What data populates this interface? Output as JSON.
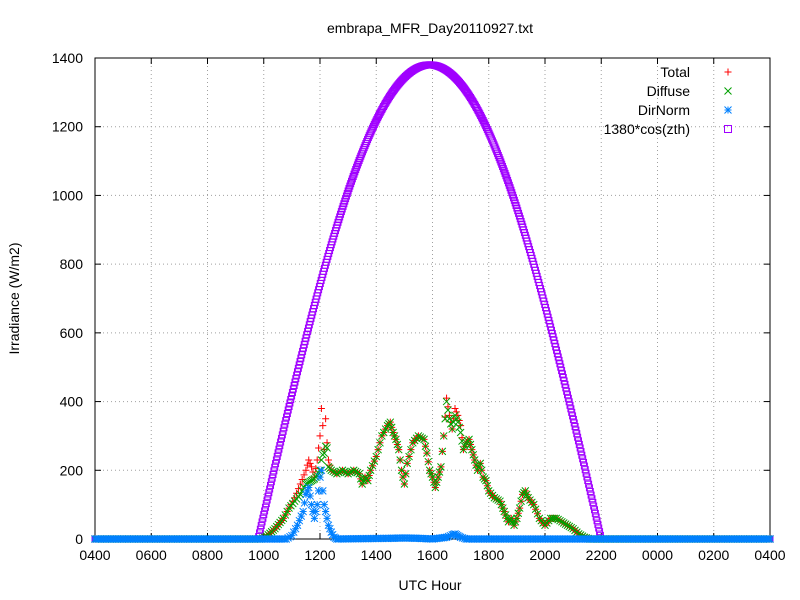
{
  "chart_data": {
    "type": "scatter",
    "title": "embrapa_MFR_Day20110927.txt",
    "xlabel": "UTC Hour",
    "ylabel": "Irradiance (W/m2)",
    "x_unit": "hour (UTC), axis spans 04:00 to 04:00 next day",
    "xlim": [
      4,
      28
    ],
    "ylim": [
      0,
      1400
    ],
    "xticks": [
      4,
      6,
      8,
      10,
      12,
      14,
      16,
      18,
      20,
      22,
      24,
      26,
      28
    ],
    "xtick_labels": [
      "0400",
      "0600",
      "0800",
      "1000",
      "1200",
      "1400",
      "1600",
      "1800",
      "2000",
      "2200",
      "0000",
      "0200",
      "0400"
    ],
    "yticks": [
      0,
      200,
      400,
      600,
      800,
      1000,
      1200,
      1400
    ],
    "ytick_labels": [
      "0",
      "200",
      "400",
      "600",
      "800",
      "1000",
      "1200",
      "1400"
    ],
    "grid": true,
    "legend_position": "top-right",
    "series": [
      {
        "name": "Total",
        "color": "#ff0000",
        "marker": "plus",
        "points": [
          [
            4,
            0
          ],
          [
            9.9,
            0
          ],
          [
            10.1,
            8
          ],
          [
            10.4,
            30
          ],
          [
            10.7,
            60
          ],
          [
            10.9,
            90
          ],
          [
            11.1,
            120
          ],
          [
            11.3,
            160
          ],
          [
            11.5,
            200
          ],
          [
            11.6,
            230
          ],
          [
            11.7,
            210
          ],
          [
            11.8,
            180
          ],
          [
            11.9,
            230
          ],
          [
            12.0,
            300
          ],
          [
            12.05,
            380
          ],
          [
            12.1,
            330
          ],
          [
            12.15,
            260
          ],
          [
            12.2,
            350
          ],
          [
            12.25,
            280
          ],
          [
            12.3,
            230
          ],
          [
            12.4,
            200
          ],
          [
            12.6,
            190
          ],
          [
            12.8,
            200
          ],
          [
            13.0,
            190
          ],
          [
            13.2,
            200
          ],
          [
            13.4,
            190
          ],
          [
            13.5,
            160
          ],
          [
            13.6,
            180
          ],
          [
            13.7,
            170
          ],
          [
            13.8,
            200
          ],
          [
            14.0,
            240
          ],
          [
            14.2,
            300
          ],
          [
            14.4,
            330
          ],
          [
            14.5,
            340
          ],
          [
            14.6,
            310
          ],
          [
            14.7,
            290
          ],
          [
            14.8,
            260
          ],
          [
            14.9,
            200
          ],
          [
            15.0,
            160
          ],
          [
            15.1,
            220
          ],
          [
            15.3,
            280
          ],
          [
            15.5,
            300
          ],
          [
            15.7,
            290
          ],
          [
            15.8,
            250
          ],
          [
            15.9,
            200
          ],
          [
            16.0,
            180
          ],
          [
            16.1,
            150
          ],
          [
            16.2,
            180
          ],
          [
            16.3,
            210
          ],
          [
            16.4,
            300
          ],
          [
            16.5,
            410
          ],
          [
            16.6,
            360
          ],
          [
            16.7,
            320
          ],
          [
            16.8,
            380
          ],
          [
            16.9,
            360
          ],
          [
            17.0,
            330
          ],
          [
            17.1,
            260
          ],
          [
            17.2,
            280
          ],
          [
            17.3,
            290
          ],
          [
            17.4,
            260
          ],
          [
            17.5,
            230
          ],
          [
            17.6,
            200
          ],
          [
            17.7,
            220
          ],
          [
            17.8,
            180
          ],
          [
            17.9,
            170
          ],
          [
            18.0,
            140
          ],
          [
            18.2,
            120
          ],
          [
            18.4,
            110
          ],
          [
            18.5,
            90
          ],
          [
            18.6,
            70
          ],
          [
            18.7,
            50
          ],
          [
            18.8,
            60
          ],
          [
            18.9,
            40
          ],
          [
            19.0,
            60
          ],
          [
            19.1,
            90
          ],
          [
            19.2,
            130
          ],
          [
            19.3,
            140
          ],
          [
            19.4,
            120
          ],
          [
            19.6,
            100
          ],
          [
            19.8,
            60
          ],
          [
            20.0,
            40
          ],
          [
            20.2,
            60
          ],
          [
            20.4,
            60
          ],
          [
            20.6,
            50
          ],
          [
            20.8,
            40
          ],
          [
            21.0,
            30
          ],
          [
            21.2,
            15
          ],
          [
            21.4,
            5
          ],
          [
            21.6,
            0
          ],
          [
            28,
            0
          ]
        ]
      },
      {
        "name": "Diffuse",
        "color": "#00a000",
        "marker": "cross",
        "points": [
          [
            4,
            0
          ],
          [
            9.9,
            0
          ],
          [
            10.1,
            8
          ],
          [
            10.4,
            30
          ],
          [
            10.7,
            60
          ],
          [
            10.9,
            90
          ],
          [
            11.1,
            110
          ],
          [
            11.3,
            130
          ],
          [
            11.5,
            160
          ],
          [
            11.6,
            165
          ],
          [
            11.7,
            170
          ],
          [
            11.8,
            175
          ],
          [
            11.9,
            185
          ],
          [
            12.0,
            200
          ],
          [
            12.05,
            230
          ],
          [
            12.1,
            245
          ],
          [
            12.15,
            250
          ],
          [
            12.2,
            270
          ],
          [
            12.25,
            265
          ],
          [
            12.3,
            210
          ],
          [
            12.4,
            200
          ],
          [
            12.6,
            190
          ],
          [
            12.8,
            200
          ],
          [
            13.0,
            190
          ],
          [
            13.2,
            200
          ],
          [
            13.4,
            190
          ],
          [
            13.5,
            160
          ],
          [
            13.6,
            180
          ],
          [
            13.7,
            170
          ],
          [
            13.8,
            200
          ],
          [
            14.0,
            240
          ],
          [
            14.2,
            300
          ],
          [
            14.4,
            330
          ],
          [
            14.5,
            340
          ],
          [
            14.6,
            310
          ],
          [
            14.7,
            290
          ],
          [
            14.8,
            260
          ],
          [
            14.9,
            200
          ],
          [
            15.0,
            160
          ],
          [
            15.1,
            220
          ],
          [
            15.3,
            280
          ],
          [
            15.5,
            300
          ],
          [
            15.7,
            290
          ],
          [
            15.8,
            250
          ],
          [
            15.9,
            200
          ],
          [
            16.0,
            180
          ],
          [
            16.1,
            150
          ],
          [
            16.2,
            180
          ],
          [
            16.3,
            210
          ],
          [
            16.4,
            300
          ],
          [
            16.5,
            400
          ],
          [
            16.6,
            350
          ],
          [
            16.7,
            320
          ],
          [
            16.8,
            360
          ],
          [
            16.9,
            340
          ],
          [
            17.0,
            310
          ],
          [
            17.1,
            260
          ],
          [
            17.2,
            280
          ],
          [
            17.3,
            290
          ],
          [
            17.4,
            260
          ],
          [
            17.5,
            230
          ],
          [
            17.6,
            200
          ],
          [
            17.7,
            220
          ],
          [
            17.8,
            180
          ],
          [
            17.9,
            170
          ],
          [
            18.0,
            140
          ],
          [
            18.2,
            120
          ],
          [
            18.4,
            110
          ],
          [
            18.5,
            90
          ],
          [
            18.6,
            70
          ],
          [
            18.7,
            50
          ],
          [
            18.8,
            60
          ],
          [
            18.9,
            40
          ],
          [
            19.0,
            60
          ],
          [
            19.1,
            90
          ],
          [
            19.2,
            130
          ],
          [
            19.3,
            140
          ],
          [
            19.4,
            120
          ],
          [
            19.6,
            100
          ],
          [
            19.8,
            60
          ],
          [
            20.0,
            40
          ],
          [
            20.2,
            60
          ],
          [
            20.4,
            60
          ],
          [
            20.6,
            50
          ],
          [
            20.8,
            40
          ],
          [
            21.0,
            30
          ],
          [
            21.2,
            15
          ],
          [
            21.4,
            5
          ],
          [
            21.6,
            0
          ],
          [
            28,
            0
          ]
        ]
      },
      {
        "name": "DirNorm",
        "color": "#0080ff",
        "marker": "star",
        "points": [
          [
            4,
            0
          ],
          [
            10.8,
            0
          ],
          [
            11.0,
            10
          ],
          [
            11.2,
            40
          ],
          [
            11.4,
            80
          ],
          [
            11.5,
            130
          ],
          [
            11.6,
            150
          ],
          [
            11.7,
            100
          ],
          [
            11.8,
            60
          ],
          [
            11.9,
            100
          ],
          [
            12.0,
            180
          ],
          [
            12.05,
            200
          ],
          [
            12.1,
            140
          ],
          [
            12.15,
            100
          ],
          [
            12.2,
            80
          ],
          [
            12.3,
            40
          ],
          [
            12.4,
            20
          ],
          [
            12.5,
            5
          ],
          [
            12.6,
            0
          ],
          [
            14.5,
            2
          ],
          [
            15.0,
            3
          ],
          [
            15.5,
            2
          ],
          [
            16.0,
            0
          ],
          [
            16.5,
            5
          ],
          [
            16.7,
            12
          ],
          [
            16.8,
            15
          ],
          [
            16.9,
            10
          ],
          [
            17.0,
            5
          ],
          [
            17.2,
            0
          ],
          [
            28,
            0
          ]
        ]
      },
      {
        "name": "1380*cos(zth)",
        "color": "#a000ff",
        "marker": "square",
        "rise_hour": 9.8,
        "noon_hour": 15.9,
        "set_hour": 22.0,
        "peak": 1380
      }
    ]
  }
}
